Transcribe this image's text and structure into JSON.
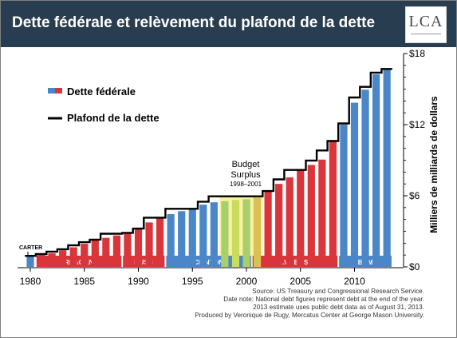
{
  "header": {
    "title": "Dette fédérale et relèvement du plafond de la dette"
  },
  "logo": {
    "text": "LCA"
  },
  "legend": {
    "debt_label": "Dette fédérale",
    "ceiling_label": "Plafond de la dette"
  },
  "colors": {
    "header_bg": "#283d4f",
    "reagan_bush_gwbush": "#d9353a",
    "blue": "#4a86c8",
    "surplus": "#f0e65a",
    "ceiling": "#000000"
  },
  "annotations": {
    "budget_surplus": [
      "Budget",
      "Surplus",
      "1998–2001"
    ],
    "carter": "CARTER"
  },
  "eras": [
    {
      "label": "REAGAN",
      "start": 1981,
      "end": 1988,
      "color": "#d9353a"
    },
    {
      "label": "BUSH",
      "start": 1989,
      "end": 1992,
      "color": "#d9353a"
    },
    {
      "label": "CLINTON",
      "start": 1993,
      "end": 2000,
      "color": "#4a86c8"
    },
    {
      "label": "G.W. BUSH",
      "start": 2001,
      "end": 2008,
      "color": "#d9353a"
    },
    {
      "label": "OBAMA",
      "start": 2009,
      "end": 2013,
      "color": "#4a86c8"
    }
  ],
  "source_lines": [
    "Source: US Treasury and Congressional Research Service.",
    "Date note: National debt figures represent debt at the end of the year.",
    "2013 estimate uses public debt data as of August 31, 2013.",
    "Produced by Veronique de Rugy, Mercatus Center at George Mason University."
  ],
  "chart_data": {
    "type": "bar",
    "title": "Dette fédérale et relèvement du plafond de la dette",
    "ylabel": "Milliers de milliards de dollars",
    "ylim": [
      0,
      18
    ],
    "y_ticks": [
      0,
      6,
      12,
      18
    ],
    "y_tick_labels": [
      "$0",
      "$6",
      "$12",
      "$18"
    ],
    "x_ticks": [
      1980,
      1985,
      1990,
      1995,
      2000,
      2005,
      2010
    ],
    "x_tick_labels": [
      "1980",
      "1985",
      "1990",
      "1995",
      "2000",
      "2005",
      "2010"
    ],
    "series": [
      {
        "name": "Dette fédérale",
        "type": "bar",
        "x": [
          1980,
          1981,
          1982,
          1983,
          1984,
          1985,
          1986,
          1987,
          1988,
          1989,
          1990,
          1991,
          1992,
          1993,
          1994,
          1995,
          1996,
          1997,
          1998,
          1999,
          2000,
          2001,
          2002,
          2003,
          2004,
          2005,
          2006,
          2007,
          2008,
          2009,
          2010,
          2011,
          2012,
          2013
        ],
        "values": [
          0.9,
          1.0,
          1.15,
          1.4,
          1.65,
          1.95,
          2.25,
          2.45,
          2.65,
          2.9,
          3.3,
          3.75,
          4.15,
          4.45,
          4.7,
          4.95,
          5.25,
          5.45,
          5.55,
          5.65,
          5.7,
          5.85,
          6.35,
          7.0,
          7.55,
          8.15,
          8.6,
          9.05,
          10.7,
          12.0,
          13.85,
          14.95,
          16.25,
          16.75
        ]
      },
      {
        "name": "Plafond de la dette",
        "type": "step",
        "x": [
          1980,
          1981,
          1982,
          1983,
          1984,
          1985,
          1986,
          1987,
          1988,
          1989,
          1990,
          1991,
          1992,
          1993,
          1994,
          1995,
          1996,
          1997,
          1998,
          1999,
          2000,
          2001,
          2002,
          2003,
          2004,
          2005,
          2006,
          2007,
          2008,
          2009,
          2010,
          2011,
          2012,
          2013
        ],
        "values": [
          0.93,
          1.08,
          1.29,
          1.49,
          1.82,
          2.08,
          2.3,
          2.8,
          2.8,
          2.87,
          3.23,
          4.15,
          4.15,
          4.9,
          4.9,
          4.9,
          5.5,
          5.95,
          5.95,
          5.95,
          5.95,
          5.95,
          6.4,
          7.38,
          8.18,
          8.18,
          8.97,
          9.82,
          10.62,
          12.1,
          14.29,
          15.19,
          16.39,
          16.7
        ]
      }
    ],
    "legend": "top-left",
    "grid": false
  }
}
